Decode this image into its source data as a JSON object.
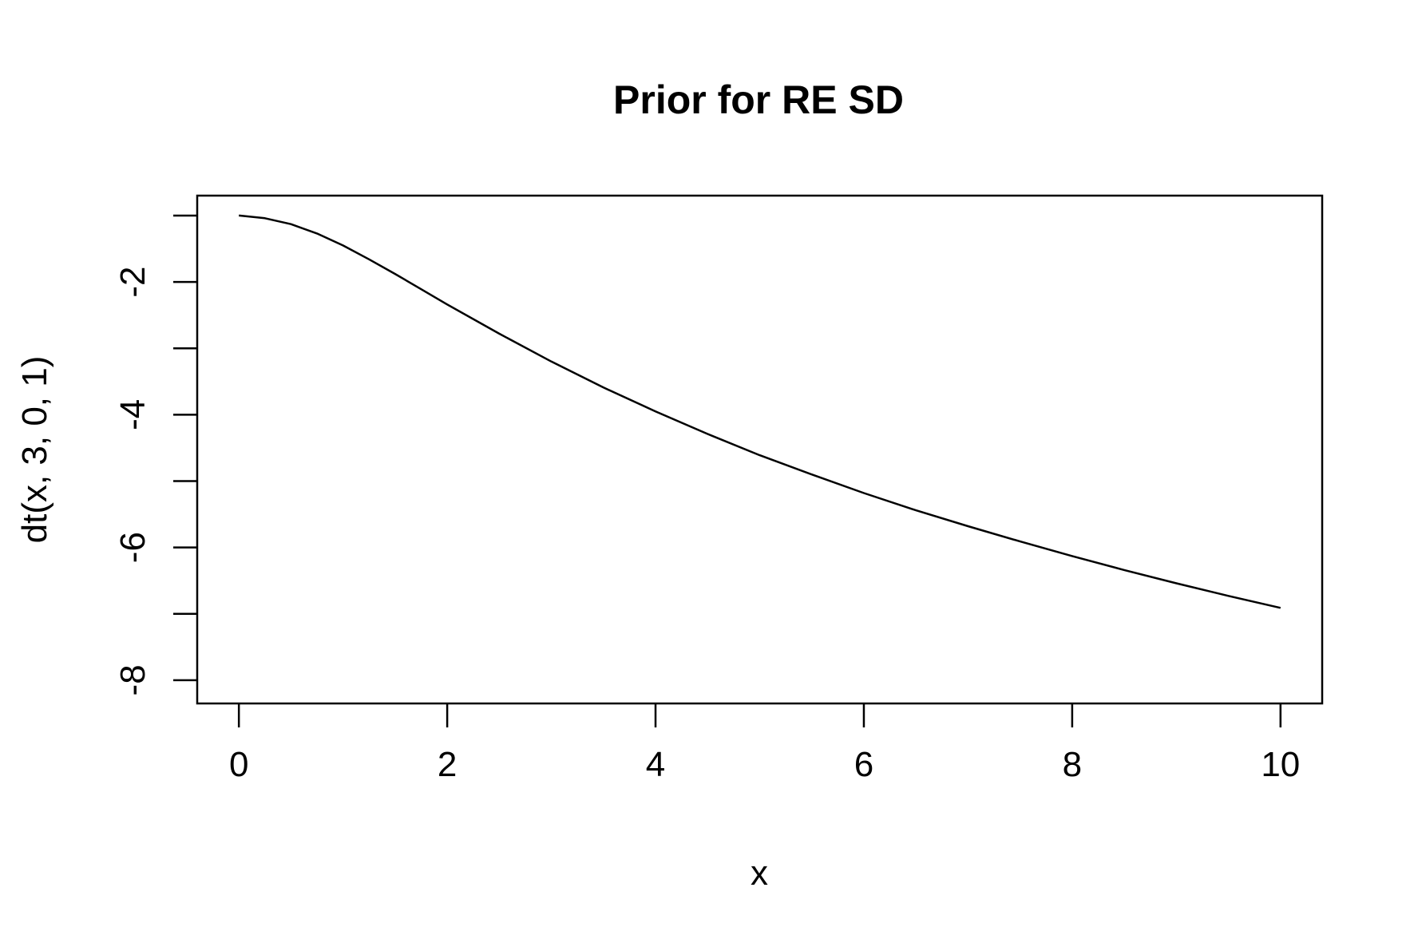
{
  "chart_data": {
    "type": "line",
    "title": "Prior for RE SD",
    "xlabel": "x",
    "ylabel": "dt(x, 3, 0, 1)",
    "xlim": [
      -0.4,
      10.4
    ],
    "ylim": [
      -8.35,
      -0.7
    ],
    "x_ticks": [
      0,
      2,
      4,
      6,
      8,
      10
    ],
    "x_tick_labels": [
      "0",
      "2",
      "4",
      "6",
      "8",
      "10"
    ],
    "y_ticks": [
      -1,
      -2,
      -3,
      -4,
      -5,
      -6,
      -7,
      -8
    ],
    "y_tick_labels": [
      "",
      "-2",
      "",
      "-4",
      "",
      "-6",
      "",
      "-8"
    ],
    "grid": false,
    "legend": "none",
    "line_color": "#000000",
    "series": [
      {
        "x": [
          0,
          0.25,
          0.5,
          0.75,
          1,
          1.25,
          1.5,
          1.75,
          2,
          2.5,
          3,
          3.5,
          4,
          4.5,
          5,
          5.5,
          6,
          6.5,
          7,
          7.5,
          8,
          8.5,
          9,
          9.5,
          10
        ],
        "values": [
          -1.0,
          -1.04,
          -1.13,
          -1.27,
          -1.45,
          -1.66,
          -1.88,
          -2.11,
          -2.34,
          -2.78,
          -3.2,
          -3.59,
          -3.95,
          -4.29,
          -4.61,
          -4.9,
          -5.18,
          -5.44,
          -5.68,
          -5.91,
          -6.13,
          -6.34,
          -6.54,
          -6.73,
          -6.91
        ]
      }
    ]
  }
}
